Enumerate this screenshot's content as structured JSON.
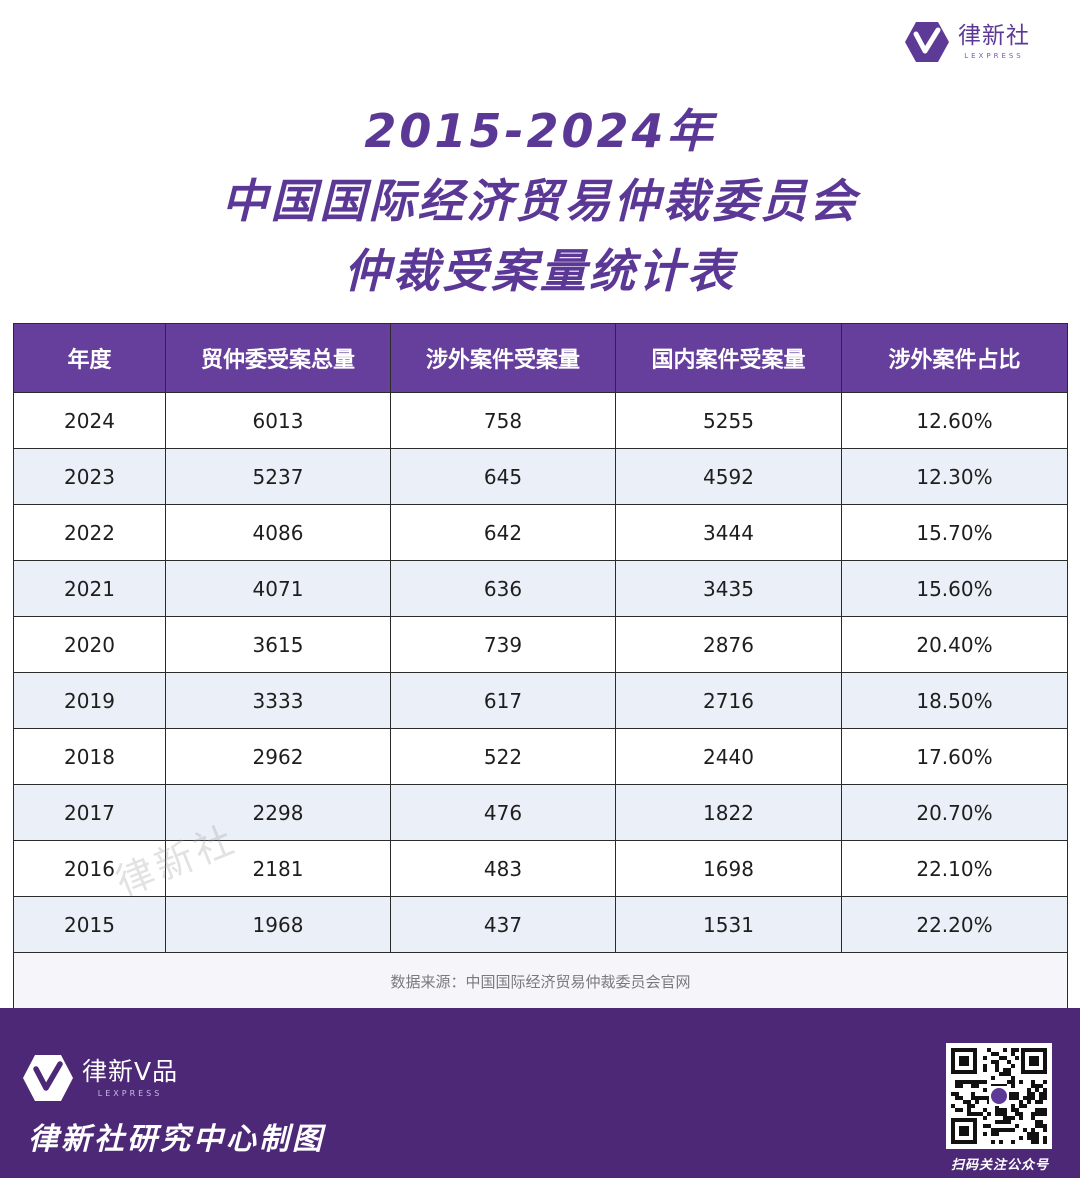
{
  "header": {
    "logo_cn": "律新社",
    "logo_en": "LEXPRESS",
    "accent": "#663f9d"
  },
  "title": {
    "line1": "2015-2024年",
    "line2": "中国国际经济贸易仲裁委员会",
    "line3": "仲裁受案量统计表"
  },
  "table": {
    "columns": [
      "年度",
      "贸仲委受案总量",
      "涉外案件受案量",
      "国内案件受案量",
      "涉外案件占比"
    ],
    "rows": [
      [
        "2024",
        "6013",
        "758",
        "5255",
        "12.60%"
      ],
      [
        "2023",
        "5237",
        "645",
        "4592",
        "12.30%"
      ],
      [
        "2022",
        "4086",
        "642",
        "3444",
        "15.70%"
      ],
      [
        "2021",
        "4071",
        "636",
        "3435",
        "15.60%"
      ],
      [
        "2020",
        "3615",
        "739",
        "2876",
        "20.40%"
      ],
      [
        "2019",
        "3333",
        "617",
        "2716",
        "18.50%"
      ],
      [
        "2018",
        "2962",
        "522",
        "2440",
        "17.60%"
      ],
      [
        "2017",
        "2298",
        "476",
        "1822",
        "20.70%"
      ],
      [
        "2016",
        "2181",
        "483",
        "1698",
        "22.10%"
      ],
      [
        "2015",
        "1968",
        "437",
        "1531",
        "22.20%"
      ]
    ],
    "source": "数据来源：中国国际经济贸易仲裁委员会官网"
  },
  "watermark": "律新社",
  "footer": {
    "brand_cn": "律新V品",
    "brand_en": "LEXPRESS",
    "credit": "律新社研究中心制图",
    "qr_label": "扫码关注公众号",
    "background": "#4c2876"
  }
}
